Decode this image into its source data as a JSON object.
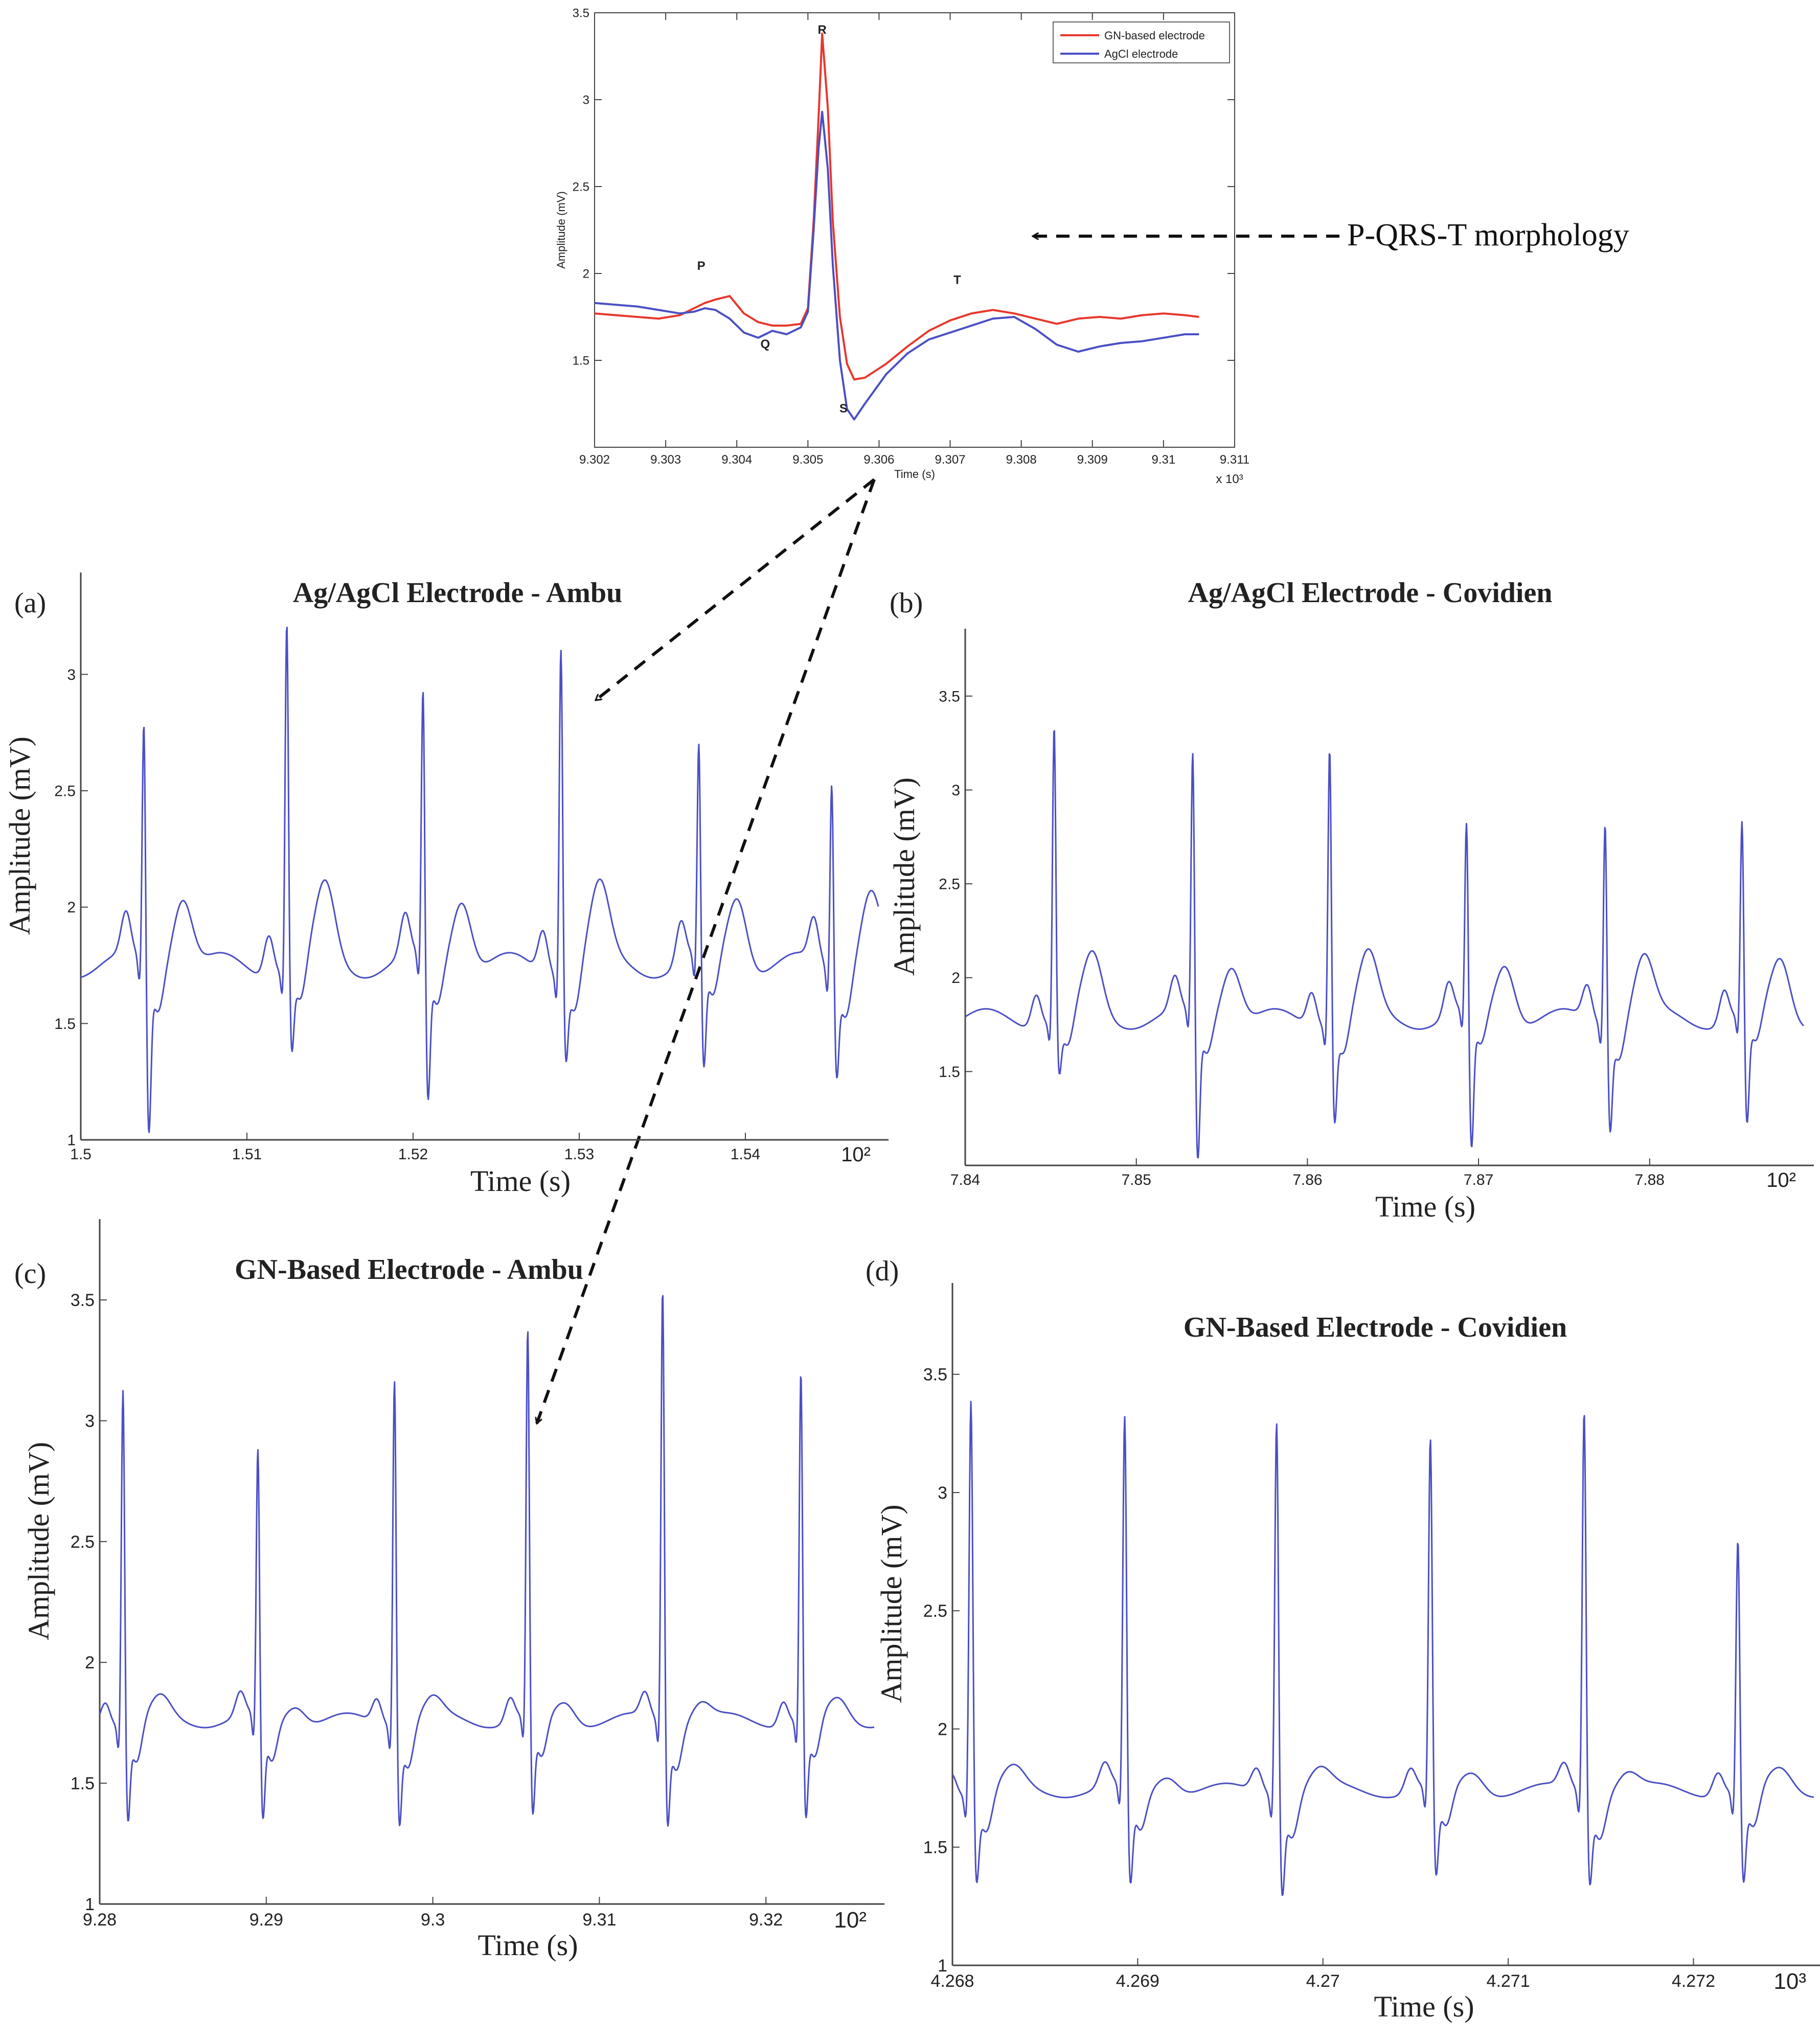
{
  "annotation": {
    "text": "P-QRS-T morphology"
  },
  "chart_data": [
    {
      "id": "top",
      "type": "line",
      "title": "",
      "xlabel": "Time (s)",
      "ylabel": "Amplitude (mV)",
      "xlim": [
        9.302,
        9.311
      ],
      "ylim": [
        1.0,
        3.5
      ],
      "x_ticks": [
        "9.302",
        "9.303",
        "9.304",
        "9.305",
        "9.306",
        "9.307",
        "9.308",
        "9.309",
        "9.31",
        "9.311"
      ],
      "y_ticks": [
        "1.5",
        "2",
        "2.5",
        "3",
        "3.5"
      ],
      "x_exponent": "x 10³",
      "grid": false,
      "legend_position": "top-right",
      "wave_labels": [
        {
          "text": "P",
          "x": 9.3035,
          "y": 2.02
        },
        {
          "text": "R",
          "x": 9.3052,
          "y": 3.38
        },
        {
          "text": "Q",
          "x": 9.3044,
          "y": 1.57
        },
        {
          "text": "S",
          "x": 9.3055,
          "y": 1.2
        },
        {
          "text": "T",
          "x": 9.3071,
          "y": 1.94
        }
      ],
      "series": [
        {
          "name": "GN-based electrode",
          "color": "#e8372c",
          "x": [
            9.302,
            9.3023,
            9.3026,
            9.3029,
            9.3032,
            9.3034,
            9.30355,
            9.3037,
            9.3039,
            9.3041,
            9.3043,
            9.3045,
            9.3047,
            9.3049,
            9.305,
            9.30508,
            9.30515,
            9.3052,
            9.30528,
            9.30535,
            9.30545,
            9.30555,
            9.30565,
            9.3058,
            9.3061,
            9.3064,
            9.3067,
            9.307,
            9.3073,
            9.3076,
            9.3079,
            9.3082,
            9.3085,
            9.3088,
            9.3091,
            9.3094,
            9.3097,
            9.31,
            9.3103,
            9.3105
          ],
          "y": [
            1.77,
            1.76,
            1.75,
            1.74,
            1.76,
            1.8,
            1.83,
            1.85,
            1.87,
            1.77,
            1.72,
            1.7,
            1.7,
            1.71,
            1.8,
            2.3,
            2.9,
            3.38,
            2.95,
            2.3,
            1.75,
            1.48,
            1.39,
            1.4,
            1.48,
            1.58,
            1.67,
            1.73,
            1.77,
            1.79,
            1.77,
            1.74,
            1.71,
            1.74,
            1.75,
            1.74,
            1.76,
            1.77,
            1.76,
            1.75
          ]
        },
        {
          "name": "AgCl electrode",
          "color": "#4b4fc4",
          "x": [
            9.302,
            9.3023,
            9.3026,
            9.3029,
            9.3032,
            9.3034,
            9.30355,
            9.3037,
            9.3039,
            9.3041,
            9.3043,
            9.3045,
            9.3047,
            9.3049,
            9.305,
            9.30508,
            9.30515,
            9.3052,
            9.30528,
            9.30535,
            9.30545,
            9.30555,
            9.30565,
            9.3058,
            9.3061,
            9.3064,
            9.3067,
            9.307,
            9.3073,
            9.3076,
            9.3079,
            9.3082,
            9.3085,
            9.3088,
            9.3091,
            9.3094,
            9.3097,
            9.31,
            9.3103,
            9.3105
          ],
          "y": [
            1.83,
            1.82,
            1.81,
            1.79,
            1.77,
            1.78,
            1.8,
            1.79,
            1.74,
            1.66,
            1.63,
            1.67,
            1.65,
            1.69,
            1.78,
            2.25,
            2.72,
            2.93,
            2.6,
            2.05,
            1.5,
            1.22,
            1.16,
            1.25,
            1.42,
            1.54,
            1.62,
            1.66,
            1.7,
            1.74,
            1.75,
            1.68,
            1.59,
            1.55,
            1.58,
            1.6,
            1.61,
            1.63,
            1.65,
            1.65
          ]
        }
      ]
    },
    {
      "id": "a",
      "panel_label": "(a)",
      "type": "line",
      "title": "Ag/AgCl Electrode - Ambu",
      "xlabel": "Time (s)",
      "ylabel": "Amplitude (mV)",
      "xlim": [
        1.5,
        1.548
      ],
      "ylim": [
        1.0,
        3.35
      ],
      "x_ticks": [
        "1.5",
        "1.51",
        "1.52",
        "1.53",
        "1.54"
      ],
      "y_ticks": [
        "1",
        "1.5",
        "2",
        "2.5",
        "3"
      ],
      "x_exponent": "10²",
      "beat_times": [
        1.5038,
        1.5124,
        1.5206,
        1.5289,
        1.5372,
        1.5452
      ],
      "r_peaks": [
        2.84,
        3.28,
        2.95,
        3.2,
        2.7,
        2.6
      ],
      "s_troughs": [
        1.07,
        1.42,
        1.18,
        1.42,
        1.3,
        1.35
      ],
      "baseline_mean": 1.75,
      "series": [
        {
          "name": "",
          "color": "#4b4fc4"
        }
      ]
    },
    {
      "id": "b",
      "panel_label": "(b)",
      "type": "line",
      "title": "Ag/AgCl Electrode - Covidien",
      "xlabel": "Time (s)",
      "ylabel": "Amplitude (mV)",
      "xlim": [
        7.84,
        7.889
      ],
      "ylim": [
        1.0,
        3.75
      ],
      "x_ticks": [
        "7.84",
        "7.85",
        "7.86",
        "7.87",
        "7.88"
      ],
      "y_ticks": [
        "1.5",
        "2",
        "2.5",
        "3",
        "3.5"
      ],
      "x_exponent": "10²",
      "beat_times": [
        7.8452,
        7.8533,
        7.8613,
        7.8693,
        7.8774,
        7.8854
      ],
      "r_peaks": [
        3.39,
        3.24,
        3.32,
        2.84,
        2.92,
        2.86
      ],
      "s_troughs": [
        1.52,
        1.05,
        1.3,
        1.08,
        1.27,
        1.22
      ],
      "baseline_mean": 1.78,
      "series": [
        {
          "name": "",
          "color": "#4b4fc4"
        }
      ]
    },
    {
      "id": "c",
      "panel_label": "(c)",
      "type": "line",
      "title": "GN-Based Electrode - Ambu",
      "xlabel": "Time (s)",
      "ylabel": "Amplitude (mV)",
      "xlim": [
        9.28,
        9.3265
      ],
      "ylim": [
        1.0,
        3.75
      ],
      "x_ticks": [
        "9.28",
        "9.29",
        "9.3",
        "9.31",
        "9.32"
      ],
      "y_ticks": [
        "1",
        "1.5",
        "2",
        "2.5",
        "3",
        "3.5"
      ],
      "x_exponent": "10²",
      "beat_times": [
        9.2814,
        9.2895,
        9.2977,
        9.3057,
        9.3138,
        9.3221
      ],
      "r_peaks": [
        3.19,
        2.9,
        3.24,
        3.4,
        3.6,
        3.24
      ],
      "s_troughs": [
        1.39,
        1.37,
        1.39,
        1.38,
        1.38,
        1.38
      ],
      "baseline_mean": 1.76,
      "series": [
        {
          "name": "",
          "color": "#4b4fc4"
        }
      ]
    },
    {
      "id": "d",
      "panel_label": "(d)",
      "type": "line",
      "title": "GN-Based Electrode - Covidien",
      "xlabel": "Time (s)",
      "ylabel": "Amplitude (mV)",
      "xlim": [
        4.268,
        4.27265
      ],
      "ylim": [
        1.0,
        3.8
      ],
      "x_ticks": [
        "4.268",
        "4.269",
        "4.27",
        "4.271",
        "4.272"
      ],
      "y_ticks": [
        "1",
        "1.5",
        "2",
        "2.5",
        "3",
        "3.5"
      ],
      "x_exponent": "10³",
      "beat_times": [
        4.2681,
        4.26893,
        4.26975,
        4.27058,
        4.27141,
        4.27224
      ],
      "r_peaks": [
        3.45,
        3.34,
        3.37,
        3.25,
        3.4,
        2.84
      ],
      "s_troughs": [
        1.4,
        1.36,
        1.36,
        1.39,
        1.4,
        1.38
      ],
      "baseline_mean": 1.74,
      "series": [
        {
          "name": "",
          "color": "#4b4fc4"
        }
      ]
    }
  ]
}
